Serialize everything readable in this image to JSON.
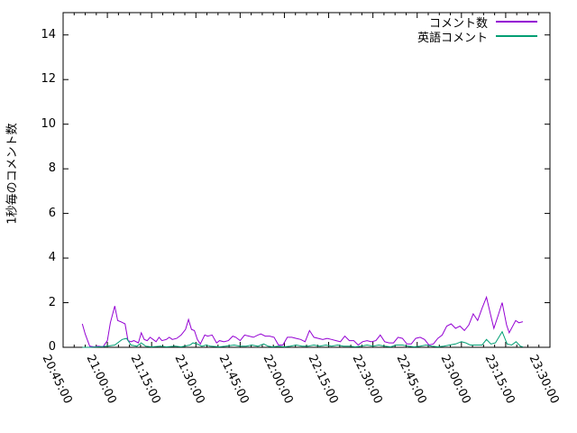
{
  "chart_data": {
    "type": "line",
    "title": "",
    "y_label": "1秒毎のコメント数",
    "x_label": "",
    "grid": false,
    "legend_position": "top-right-inside",
    "background": "#ffffff",
    "border_color": "#000000",
    "y_range": [
      0,
      15
    ],
    "y_ticks": [
      0,
      2,
      4,
      6,
      8,
      10,
      12,
      14
    ],
    "x_range_minutes": [
      0,
      165
    ],
    "x_major_step_minutes": 15,
    "x_minor_divisions": 4,
    "x_tick_labels": [
      "20:45:00",
      "21:00:00",
      "21:15:00",
      "21:30:00",
      "21:45:00",
      "22:00:00",
      "22:15:00",
      "22:30:00",
      "22:45:00",
      "23:00:00",
      "23:15:00",
      "23:30:00"
    ],
    "series": [
      {
        "name": "コメント数",
        "color": "#9400d3",
        "points": [
          [
            6.5,
            1.05
          ],
          [
            7.5,
            0.6
          ],
          [
            9,
            0.05
          ],
          [
            10.5,
            0.02
          ],
          [
            12,
            0.05
          ],
          [
            13.5,
            0.02
          ],
          [
            15,
            0.3
          ],
          [
            16,
            1.1
          ],
          [
            17.5,
            1.85
          ],
          [
            18.5,
            1.2
          ],
          [
            19.5,
            1.15
          ],
          [
            21,
            1.05
          ],
          [
            22,
            0.3
          ],
          [
            23,
            0.25
          ],
          [
            24,
            0.3
          ],
          [
            25.5,
            0.2
          ],
          [
            26.5,
            0.65
          ],
          [
            27.5,
            0.35
          ],
          [
            28.5,
            0.3
          ],
          [
            29.5,
            0.45
          ],
          [
            30.5,
            0.35
          ],
          [
            31.5,
            0.25
          ],
          [
            32.5,
            0.45
          ],
          [
            33.5,
            0.3
          ],
          [
            35,
            0.35
          ],
          [
            36,
            0.45
          ],
          [
            37,
            0.35
          ],
          [
            38.5,
            0.4
          ],
          [
            40,
            0.55
          ],
          [
            41.5,
            0.8
          ],
          [
            42.5,
            1.25
          ],
          [
            43.5,
            0.8
          ],
          [
            44.5,
            0.75
          ],
          [
            45.5,
            0.35
          ],
          [
            46.5,
            0.15
          ],
          [
            48,
            0.55
          ],
          [
            49,
            0.5
          ],
          [
            50.5,
            0.55
          ],
          [
            52,
            0.2
          ],
          [
            53,
            0.3
          ],
          [
            54.5,
            0.25
          ],
          [
            56,
            0.3
          ],
          [
            57.5,
            0.5
          ],
          [
            58.5,
            0.45
          ],
          [
            60,
            0.3
          ],
          [
            61.5,
            0.55
          ],
          [
            63,
            0.5
          ],
          [
            64.5,
            0.45
          ],
          [
            66,
            0.55
          ],
          [
            67,
            0.6
          ],
          [
            68.5,
            0.5
          ],
          [
            70,
            0.5
          ],
          [
            71.5,
            0.45
          ],
          [
            73,
            0.1
          ],
          [
            74.5,
            0.1
          ],
          [
            76,
            0.45
          ],
          [
            77.5,
            0.45
          ],
          [
            79,
            0.4
          ],
          [
            80.5,
            0.35
          ],
          [
            82,
            0.25
          ],
          [
            83.5,
            0.75
          ],
          [
            85,
            0.45
          ],
          [
            86.5,
            0.4
          ],
          [
            88,
            0.35
          ],
          [
            89.5,
            0.4
          ],
          [
            91,
            0.35
          ],
          [
            92.5,
            0.3
          ],
          [
            94,
            0.25
          ],
          [
            95.5,
            0.5
          ],
          [
            97,
            0.3
          ],
          [
            98.5,
            0.3
          ],
          [
            100,
            0.1
          ],
          [
            101.5,
            0.25
          ],
          [
            103,
            0.3
          ],
          [
            104.5,
            0.25
          ],
          [
            106,
            0.3
          ],
          [
            107.5,
            0.55
          ],
          [
            109,
            0.25
          ],
          [
            110.5,
            0.2
          ],
          [
            112,
            0.2
          ],
          [
            113.5,
            0.45
          ],
          [
            115,
            0.4
          ],
          [
            116.5,
            0.15
          ],
          [
            118,
            0.15
          ],
          [
            119.5,
            0.4
          ],
          [
            121,
            0.45
          ],
          [
            122.5,
            0.35
          ],
          [
            124,
            0.1
          ],
          [
            125.5,
            0.15
          ],
          [
            127,
            0.4
          ],
          [
            128.5,
            0.55
          ],
          [
            130,
            0.95
          ],
          [
            131.5,
            1.05
          ],
          [
            133,
            0.85
          ],
          [
            134.5,
            0.95
          ],
          [
            136,
            0.75
          ],
          [
            137.5,
            1.0
          ],
          [
            139,
            1.5
          ],
          [
            140.5,
            1.2
          ],
          [
            142,
            1.75
          ],
          [
            143.5,
            2.25
          ],
          [
            145,
            1.4
          ],
          [
            146,
            0.85
          ],
          [
            147.5,
            1.45
          ],
          [
            148.8,
            2.0
          ],
          [
            150.3,
            1.0
          ],
          [
            151.2,
            0.65
          ],
          [
            153.4,
            1.2
          ],
          [
            154.5,
            1.1
          ],
          [
            155.8,
            1.15
          ]
        ]
      },
      {
        "name": "英語コメント",
        "color": "#009e73",
        "points": [
          [
            6.5,
            0
          ],
          [
            9,
            0
          ],
          [
            12,
            0.02
          ],
          [
            15,
            0.05
          ],
          [
            17.5,
            0.1
          ],
          [
            20,
            0.35
          ],
          [
            21.5,
            0.4
          ],
          [
            23,
            0.1
          ],
          [
            25,
            0.05
          ],
          [
            26.5,
            0.2
          ],
          [
            28,
            0.05
          ],
          [
            30,
            0.02
          ],
          [
            33,
            0.05
          ],
          [
            35,
            0.02
          ],
          [
            38,
            0.05
          ],
          [
            40,
            0.02
          ],
          [
            43,
            0.1
          ],
          [
            44,
            0.2
          ],
          [
            45.5,
            0.15
          ],
          [
            47,
            0.05
          ],
          [
            48.5,
            0.1
          ],
          [
            50,
            0.05
          ],
          [
            53,
            0.02
          ],
          [
            55,
            0.05
          ],
          [
            58,
            0.1
          ],
          [
            60,
            0.05
          ],
          [
            62,
            0.05
          ],
          [
            64,
            0.1
          ],
          [
            66,
            0.05
          ],
          [
            68,
            0.15
          ],
          [
            69.5,
            0.05
          ],
          [
            71,
            0.02
          ],
          [
            73,
            0.05
          ],
          [
            75,
            0.02
          ],
          [
            77,
            0.05
          ],
          [
            79,
            0.1
          ],
          [
            81,
            0.05
          ],
          [
            83,
            0.05
          ],
          [
            85,
            0.1
          ],
          [
            87,
            0.05
          ],
          [
            89,
            0.1
          ],
          [
            91,
            0.05
          ],
          [
            93,
            0.1
          ],
          [
            95,
            0.05
          ],
          [
            97,
            0.05
          ],
          [
            99,
            0.02
          ],
          [
            101,
            0.05
          ],
          [
            103,
            0.1
          ],
          [
            105,
            0.05
          ],
          [
            107,
            0.1
          ],
          [
            109,
            0.05
          ],
          [
            111,
            0.02
          ],
          [
            113,
            0.1
          ],
          [
            115,
            0.1
          ],
          [
            117,
            0.05
          ],
          [
            119,
            0.02
          ],
          [
            121,
            0.05
          ],
          [
            123,
            0.1
          ],
          [
            125,
            0.05
          ],
          [
            127,
            0.02
          ],
          [
            129,
            0.05
          ],
          [
            131,
            0.1
          ],
          [
            133,
            0.15
          ],
          [
            135,
            0.25
          ],
          [
            136.5,
            0.2
          ],
          [
            138,
            0.1
          ],
          [
            140,
            0.1
          ],
          [
            142,
            0.1
          ],
          [
            143.5,
            0.35
          ],
          [
            145,
            0.15
          ],
          [
            146.5,
            0.2
          ],
          [
            148.8,
            0.7
          ],
          [
            150.5,
            0.15
          ],
          [
            152,
            0.1
          ],
          [
            153.5,
            0.25
          ],
          [
            155,
            0.05
          ],
          [
            155.8,
            0.02
          ]
        ]
      }
    ]
  }
}
